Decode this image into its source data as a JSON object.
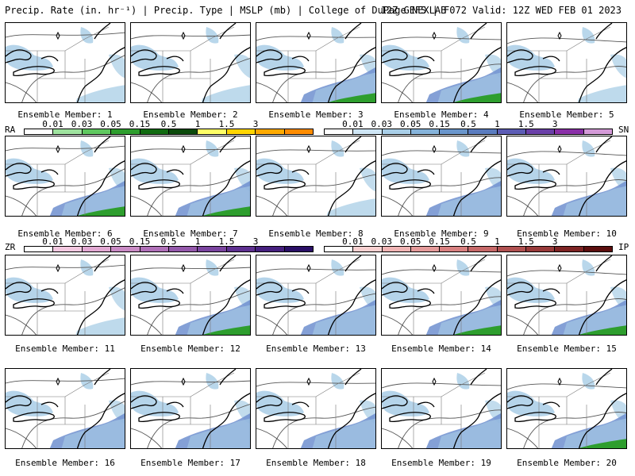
{
  "header": {
    "left": "Precip. Rate (in. hr⁻¹) | Precip. Type | MSLP (mb) | College of DuPage NEXLAB",
    "right": "12Z GEFS | F072 Valid: 12Z WED FEB 01 2023"
  },
  "members": [
    "Ensemble Member: 1",
    "Ensemble Member: 2",
    "Ensemble Member: 3",
    "Ensemble Member: 4",
    "Ensemble Member: 5",
    "Ensemble Member: 6",
    "Ensemble Member: 7",
    "Ensemble Member: 8",
    "Ensemble Member: 9",
    "Ensemble Member: 10",
    "Ensemble Member: 11",
    "Ensemble Member: 12",
    "Ensemble Member: 13",
    "Ensemble Member: 14",
    "Ensemble Member: 15",
    "Ensemble Member: 16",
    "Ensemble Member: 17",
    "Ensemble Member: 18",
    "Ensemble Member: 19",
    "Ensemble Member: 20"
  ],
  "legends": {
    "ra": {
      "name": "RA",
      "ticks": [
        "0.01",
        "0.03",
        "0.05",
        "0.15",
        "0.5",
        "1",
        "1.5",
        "3"
      ],
      "colors": [
        "#ffffff",
        "#9fe39f",
        "#5fc85f",
        "#2e9e2e",
        "#106b10",
        "#0b4a0b",
        "#ffff66",
        "#ffd500",
        "#ffaa00",
        "#ff8c00"
      ]
    },
    "sn": {
      "name": "SN",
      "ticks": [
        "0.01",
        "0.03",
        "0.05",
        "0.15",
        "0.5",
        "1",
        "1.5",
        "3"
      ],
      "colors": [
        "#ffffff",
        "#cfe6f5",
        "#a9cfe8",
        "#86b4db",
        "#6a96cc",
        "#5a7cbf",
        "#5c5cb5",
        "#6a3fa8",
        "#8a2fa8",
        "#d49ad8"
      ]
    },
    "zr": {
      "name": "ZR",
      "ticks": [
        "0.01",
        "0.03",
        "0.05",
        "0.15",
        "0.5",
        "1",
        "1.5",
        "3"
      ],
      "colors": [
        "#ffffff",
        "#f3c8e0",
        "#e2a8d2",
        "#c98ac4",
        "#b070b8",
        "#9458ab",
        "#7a449f",
        "#5e3090",
        "#46207f",
        "#2a0f66"
      ]
    },
    "ip": {
      "name": "IP",
      "ticks": [
        "0.01",
        "0.03",
        "0.05",
        "0.15",
        "0.5",
        "1",
        "1.5",
        "3"
      ],
      "colors": [
        "#ffffff",
        "#f8d0d0",
        "#f0b4b4",
        "#e49a9a",
        "#d88080",
        "#c66868",
        "#b05050",
        "#983a3a",
        "#7e2424",
        "#5c0e0e"
      ]
    }
  },
  "colors": {
    "snow": "#a8cde6",
    "snow_heavy": "#6f8fcf",
    "rain": "#2e9e2e",
    "coast": "#000000",
    "isobar": "#555555"
  }
}
